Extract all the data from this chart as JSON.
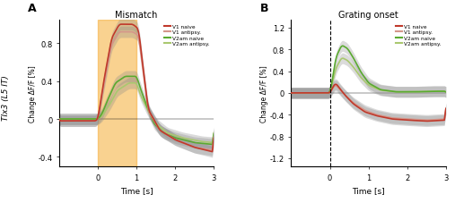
{
  "panel_A": {
    "title": "Mismatch",
    "xlabel": "Time [s]",
    "ylabel": "Change ΔF/F [%]",
    "ylim": [
      -0.5,
      1.05
    ],
    "yticks": [
      -0.4,
      0.0,
      0.4,
      0.8
    ],
    "xlim": [
      -1.0,
      3.0
    ],
    "xticks": [
      0,
      1,
      2,
      3
    ],
    "xticklabels": [
      "0",
      "1",
      "2",
      "3"
    ],
    "orange_patch": [
      0.0,
      1.0
    ],
    "legend": [
      "V1 naive",
      "V1 antipsy.",
      "V2am naive",
      "V2am antipsy."
    ],
    "colors": {
      "V1_naive": "#c0392b",
      "V1_antipsy": "#d4968a",
      "V2am_naive": "#5aaa30",
      "V2am_antipsy": "#aac870"
    }
  },
  "panel_B": {
    "title": "Grating onset",
    "xlabel": "Time [s]",
    "ylabel": "Change ΔF/F [%]",
    "ylim": [
      -1.35,
      1.35
    ],
    "yticks": [
      -1.2,
      -0.8,
      -0.4,
      0.0,
      0.4,
      0.8,
      1.2
    ],
    "xlim": [
      -1.0,
      3.0
    ],
    "xticks": [
      0,
      1,
      2,
      3
    ],
    "xticklabels": [
      "0",
      "1",
      "2",
      "3"
    ],
    "dashed_line_x": 0.0,
    "legend": [
      "V1 naive",
      "V1 antipsy.",
      "V2am naive",
      "V2am antipsy."
    ],
    "colors": {
      "V1_naive": "#c0392b",
      "V1_antipsy": "#d4968a",
      "V2am_naive": "#5aaa30",
      "V2am_antipsy": "#aac870"
    }
  },
  "fig_label_left": "TIx3 (L5 IT)",
  "background_color": "#ffffff",
  "shade_alpha": 0.3,
  "line_width": 1.2
}
